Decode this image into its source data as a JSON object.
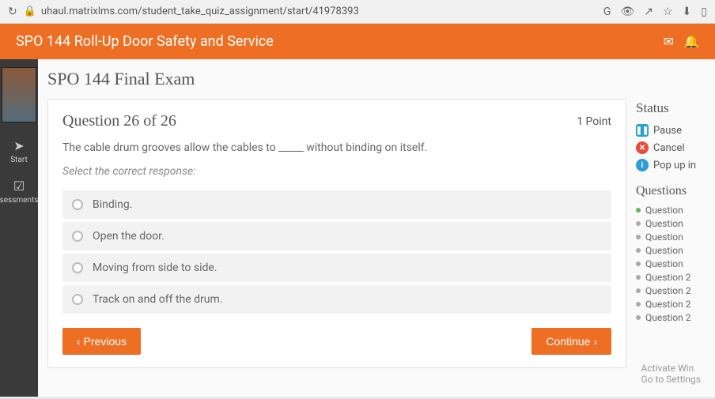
{
  "browser": {
    "url": "uhaul.matrixlms.com/student_take_quiz_assignment/start/41978393"
  },
  "header": {
    "title": "SPO 144 Roll-Up Door Safety and Service"
  },
  "sidebar": {
    "start_label": "Start",
    "assessments_label": "sessments"
  },
  "exam": {
    "title": "SPO 144 Final Exam",
    "question_label": "Question 26 of 26",
    "points": "1 Point",
    "question_text": "The cable drum grooves allow the cables to _____ without binding on itself.",
    "instruction": "Select the correct response:",
    "options": [
      "Binding.",
      "Open the door.",
      "Moving from side to side.",
      "Track on and off the drum."
    ],
    "prev_btn": "‹  Previous",
    "continue_btn": "Continue  ›"
  },
  "status": {
    "title": "Status",
    "pause": "Pause",
    "cancel": "Cancel",
    "popup": "Pop up in"
  },
  "questions": {
    "title": "Questions",
    "items": [
      {
        "label": "Question",
        "done": true
      },
      {
        "label": "Question",
        "done": false
      },
      {
        "label": "Question",
        "done": false
      },
      {
        "label": "Question",
        "done": false
      },
      {
        "label": "Question",
        "done": false
      },
      {
        "label": "Question 2",
        "done": false
      },
      {
        "label": "Question 2",
        "done": false
      },
      {
        "label": "Question 2",
        "done": false
      },
      {
        "label": "Question 2",
        "done": false
      }
    ]
  },
  "watermark": {
    "line1": "Activate Win",
    "line2": "Go to Settings"
  }
}
